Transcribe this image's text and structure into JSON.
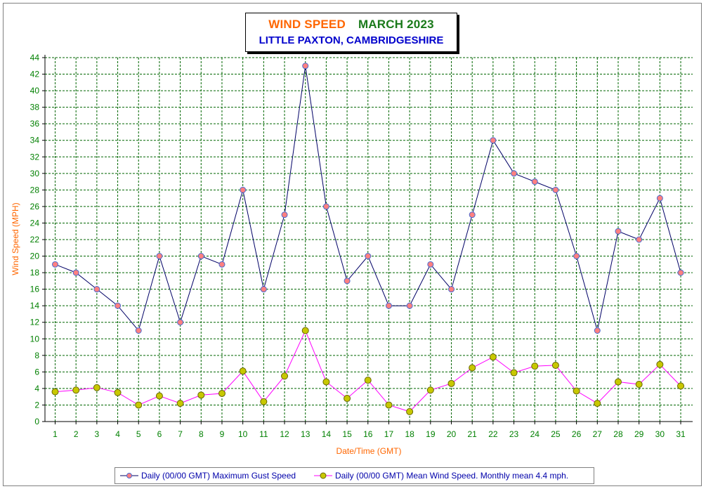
{
  "title": {
    "line1_part1": "WIND SPEED",
    "line1_part2": "MARCH 2023",
    "line2": "LITTLE PAXTON, CAMBRIDGESHIRE"
  },
  "legend": {
    "series1": "Daily (00/00 GMT) Maximum Gust Speed",
    "series2": "Daily (00/00 GMT) Mean Wind Speed. Monthly mean 4.4 mph."
  },
  "colors": {
    "gust_line": "#000066",
    "gust_marker": "#ff8080",
    "gust_marker_edge": "#4a6ad0",
    "mean_line": "#ff00ff",
    "mean_marker": "#c8c800",
    "mean_marker_edge": "#666600",
    "grid": "#006600",
    "axis_text": "#008000",
    "axis_title": "#ff6600"
  },
  "chart_data": {
    "type": "line",
    "title": "WIND SPEED MARCH 2023",
    "subtitle": "LITTLE PAXTON, CAMBRIDGESHIRE",
    "xlabel": "Date/Time (GMT)",
    "ylabel": "Wind Speed (MPH)",
    "ylim": [
      0,
      44
    ],
    "ytick_step": 2,
    "grid": true,
    "legend_position": "bottom",
    "categories": [
      "1",
      "2",
      "3",
      "4",
      "5",
      "6",
      "7",
      "8",
      "9",
      "10",
      "11",
      "12",
      "13",
      "14",
      "15",
      "16",
      "17",
      "18",
      "19",
      "20",
      "21",
      "22",
      "23",
      "24",
      "25",
      "26",
      "27",
      "28",
      "29",
      "30",
      "31"
    ],
    "series": [
      {
        "name": "Daily (00/00 GMT) Maximum Gust Speed",
        "values": [
          19,
          18,
          16,
          14,
          11,
          20,
          12,
          20,
          19,
          28,
          16,
          25,
          43,
          26,
          17,
          20,
          14,
          14,
          19,
          16,
          25,
          34,
          30,
          29,
          28,
          20,
          11,
          23,
          22,
          27,
          18
        ]
      },
      {
        "name": "Daily (00/00 GMT) Mean Wind Speed. Monthly mean 4.4 mph.",
        "values": [
          3.6,
          3.8,
          4.1,
          3.5,
          2.0,
          3.1,
          2.2,
          3.2,
          3.4,
          6.1,
          2.4,
          5.5,
          11.0,
          4.8,
          2.8,
          5.0,
          2.0,
          1.2,
          3.8,
          4.6,
          6.5,
          7.8,
          5.9,
          6.7,
          6.8,
          3.7,
          2.2,
          4.8,
          4.5,
          6.9,
          4.3
        ]
      }
    ]
  }
}
